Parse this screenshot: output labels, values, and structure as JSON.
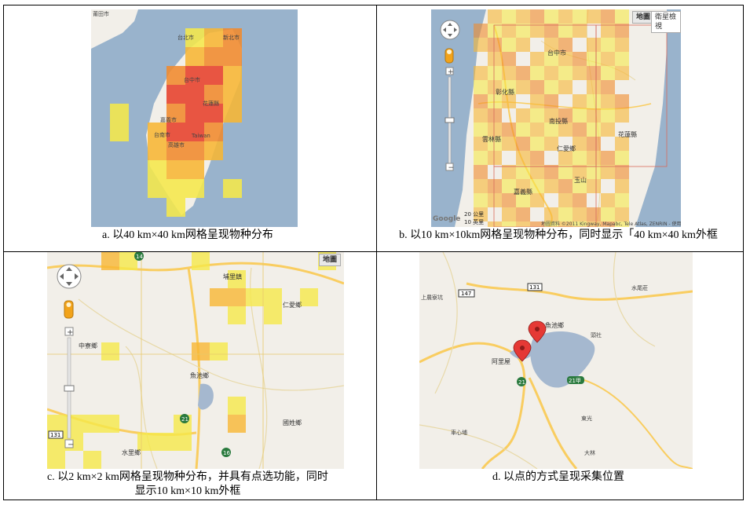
{
  "captions": {
    "a": "a.  以40 km×40 km网格呈现物种分布",
    "b": "b.  以10 km×10km网格呈现物种分布，同时显示「40 km×40 km外框",
    "c_line1": "c.  以2 km×2 km网格呈现物种分布，并具有点选功能，同时",
    "c_line2": "显示10 km×10 km外框",
    "d": "d.  以点的方式呈现采集位置"
  },
  "panel_a": {
    "labels": [
      "莆田市",
      "台北市",
      "新北市",
      "台中市",
      "花蓮縣",
      "嘉義市",
      "Taiwan",
      "高雄市",
      "台南市"
    ]
  },
  "panel_b": {
    "buttons": {
      "map": "地圖",
      "satellite": "衛星檢視"
    },
    "labels": [
      "台中市",
      "彰化縣",
      "南投縣",
      "花蓮縣",
      "雲林縣",
      "嘉義縣",
      "玉山",
      "仁愛鄉"
    ],
    "scale_km": "20 公里",
    "scale_mi": "10 英里",
    "attribution": "地圖資料 ©2011 Kingway, Mapabc, Tele Atlas, ZENRIN - 使用條款",
    "logo": "Google"
  },
  "panel_c": {
    "button_map": "地圖",
    "labels": [
      "埔里鎮",
      "中寮鄉",
      "魚池鄉",
      "水里鄉",
      "仁愛鄉",
      "國姓鄉"
    ],
    "shields": [
      "14",
      "21",
      "131",
      "16"
    ]
  },
  "panel_d": {
    "labels": [
      "魚池鄉",
      "阿里屋",
      "上農寮坑",
      "水尾莊",
      "頭社",
      "東光",
      "大林",
      "車心埔"
    ],
    "shields": [
      "147",
      "131",
      "21",
      "21甲"
    ]
  },
  "colors": {
    "sea": "#99b3cc",
    "land": "#f2efe9",
    "cell_light": "#f5e84a",
    "cell_mid": "#f7b633",
    "cell_dark": "#f08a2c",
    "cell_red": "#e6402a",
    "road": "#f9cd60",
    "lake": "#a5b8cf",
    "marker": "#e53935"
  }
}
